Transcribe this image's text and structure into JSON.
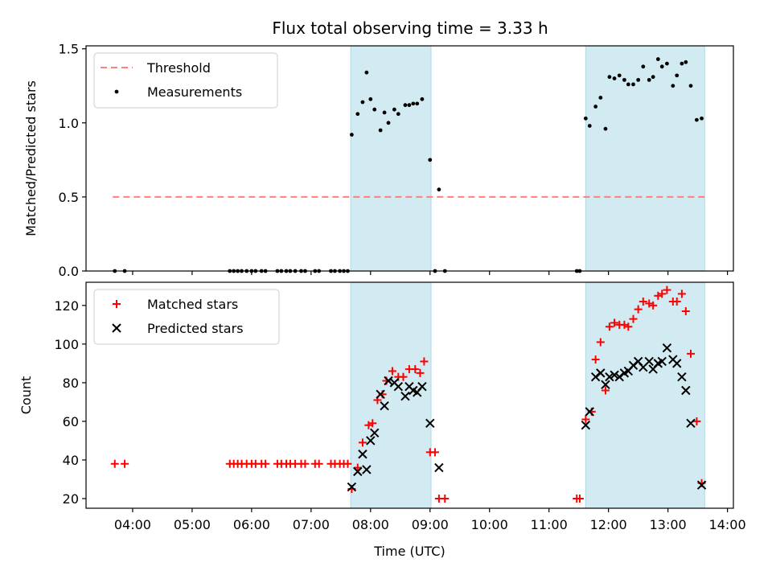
{
  "title": "Flux total observing time = 3.33 h",
  "colors": {
    "threshold": "#ff7f7f",
    "shade": "#add8e6",
    "matched": "#ff0000",
    "predicted": "#000000",
    "measurement": "#000000"
  },
  "chart_data": [
    {
      "type": "scatter",
      "ylabel": "Matched/Predicted stars",
      "xlabel": "",
      "ylim": [
        0,
        1.52
      ],
      "yticks": [
        "0.0",
        "0.5",
        "1.0",
        "1.5"
      ],
      "ytick_values": [
        0,
        0.5,
        1.0,
        1.5
      ],
      "legend": {
        "location": "upper left",
        "entries": [
          "Threshold",
          "Measurements"
        ]
      },
      "shaded_intervals": [
        [
          "07:40",
          "09:01"
        ],
        [
          "11:37",
          "13:37"
        ]
      ],
      "threshold": {
        "name": "Threshold",
        "value": 0.5,
        "x_range": [
          "03:40",
          "13:37"
        ]
      },
      "series": [
        {
          "name": "Measurements",
          "points": [
            [
              "03:42",
              0
            ],
            [
              "03:52",
              0
            ],
            [
              "05:38",
              0
            ],
            [
              "05:42",
              0
            ],
            [
              "05:46",
              0
            ],
            [
              "05:50",
              0
            ],
            [
              "05:55",
              0
            ],
            [
              "06:00",
              0
            ],
            [
              "06:04",
              0
            ],
            [
              "06:10",
              0
            ],
            [
              "06:14",
              0
            ],
            [
              "06:26",
              0
            ],
            [
              "06:30",
              0
            ],
            [
              "06:35",
              0
            ],
            [
              "06:39",
              0
            ],
            [
              "06:44",
              0
            ],
            [
              "06:50",
              0
            ],
            [
              "06:54",
              0
            ],
            [
              "07:04",
              0
            ],
            [
              "07:08",
              0
            ],
            [
              "07:20",
              0
            ],
            [
              "07:24",
              0
            ],
            [
              "07:29",
              0
            ],
            [
              "07:33",
              0
            ],
            [
              "07:37",
              0
            ],
            [
              "07:41",
              0.92
            ],
            [
              "07:47",
              1.06
            ],
            [
              "07:52",
              1.14
            ],
            [
              "07:56",
              1.34
            ],
            [
              "08:00",
              1.16
            ],
            [
              "08:04",
              1.09
            ],
            [
              "08:10",
              0.95
            ],
            [
              "08:14",
              1.07
            ],
            [
              "08:18",
              1.0
            ],
            [
              "08:24",
              1.09
            ],
            [
              "08:28",
              1.06
            ],
            [
              "08:35",
              1.12
            ],
            [
              "08:39",
              1.12
            ],
            [
              "08:43",
              1.13
            ],
            [
              "08:47",
              1.13
            ],
            [
              "08:52",
              1.16
            ],
            [
              "09:00",
              0.75
            ],
            [
              "09:05",
              0.0
            ],
            [
              "09:09",
              0.55
            ],
            [
              "09:15",
              0.0
            ],
            [
              "11:28",
              0
            ],
            [
              "11:31",
              0
            ],
            [
              "11:37",
              1.03
            ],
            [
              "11:41",
              0.98
            ],
            [
              "11:47",
              1.11
            ],
            [
              "11:52",
              1.17
            ],
            [
              "11:57",
              0.96
            ],
            [
              "12:01",
              1.31
            ],
            [
              "12:06",
              1.3
            ],
            [
              "12:11",
              1.32
            ],
            [
              "12:16",
              1.29
            ],
            [
              "12:20",
              1.26
            ],
            [
              "12:25",
              1.26
            ],
            [
              "12:30",
              1.29
            ],
            [
              "12:35",
              1.38
            ],
            [
              "12:41",
              1.29
            ],
            [
              "12:45",
              1.31
            ],
            [
              "12:50",
              1.43
            ],
            [
              "12:54",
              1.38
            ],
            [
              "12:59",
              1.4
            ],
            [
              "13:05",
              1.25
            ],
            [
              "13:09",
              1.32
            ],
            [
              "13:14",
              1.4
            ],
            [
              "13:18",
              1.41
            ],
            [
              "13:23",
              1.25
            ],
            [
              "13:29",
              1.02
            ],
            [
              "13:34",
              1.03
            ]
          ]
        }
      ]
    },
    {
      "type": "scatter",
      "xlabel": "Time (UTC)",
      "ylabel": "Count",
      "ylim": [
        15,
        132
      ],
      "yticks": [
        "20",
        "40",
        "60",
        "80",
        "100",
        "120"
      ],
      "ytick_values": [
        20,
        40,
        60,
        80,
        100,
        120
      ],
      "xlim": [
        "03:13",
        "14:06"
      ],
      "xticks": [
        "04:00",
        "05:00",
        "06:00",
        "07:00",
        "08:00",
        "09:00",
        "10:00",
        "11:00",
        "12:00",
        "13:00",
        "14:00"
      ],
      "legend": {
        "location": "upper left",
        "entries": [
          "Matched stars",
          "Predicted stars"
        ]
      },
      "shaded_intervals": [
        [
          "07:40",
          "09:01"
        ],
        [
          "11:37",
          "13:37"
        ]
      ],
      "series": [
        {
          "name": "Matched stars",
          "marker": "+",
          "points": [
            [
              "03:42",
              38
            ],
            [
              "03:52",
              38
            ],
            [
              "05:38",
              38
            ],
            [
              "05:42",
              38
            ],
            [
              "05:46",
              38
            ],
            [
              "05:50",
              38
            ],
            [
              "05:55",
              38
            ],
            [
              "06:00",
              38
            ],
            [
              "06:04",
              38
            ],
            [
              "06:10",
              38
            ],
            [
              "06:14",
              38
            ],
            [
              "06:26",
              38
            ],
            [
              "06:30",
              38
            ],
            [
              "06:35",
              38
            ],
            [
              "06:39",
              38
            ],
            [
              "06:44",
              38
            ],
            [
              "06:50",
              38
            ],
            [
              "06:54",
              38
            ],
            [
              "07:04",
              38
            ],
            [
              "07:08",
              38
            ],
            [
              "07:20",
              38
            ],
            [
              "07:24",
              38
            ],
            [
              "07:29",
              38
            ],
            [
              "07:33",
              38
            ],
            [
              "07:37",
              38
            ],
            [
              "07:41",
              25
            ],
            [
              "07:47",
              36
            ],
            [
              "07:52",
              49
            ],
            [
              "07:58",
              58
            ],
            [
              "08:02",
              59
            ],
            [
              "08:07",
              71
            ],
            [
              "08:12",
              74
            ],
            [
              "08:16",
              81
            ],
            [
              "08:22",
              86
            ],
            [
              "08:28",
              83
            ],
            [
              "08:33",
              83
            ],
            [
              "08:39",
              87
            ],
            [
              "08:45",
              87
            ],
            [
              "08:50",
              85
            ],
            [
              "08:54",
              91
            ],
            [
              "09:00",
              44
            ],
            [
              "09:05",
              44
            ],
            [
              "09:09",
              20
            ],
            [
              "09:15",
              20
            ],
            [
              "11:28",
              20
            ],
            [
              "11:31",
              20
            ],
            [
              "11:37",
              61
            ],
            [
              "11:43",
              65
            ],
            [
              "11:47",
              92
            ],
            [
              "11:52",
              101
            ],
            [
              "11:57",
              76
            ],
            [
              "12:01",
              109
            ],
            [
              "12:06",
              111
            ],
            [
              "12:11",
              110
            ],
            [
              "12:16",
              110
            ],
            [
              "12:20",
              109
            ],
            [
              "12:25",
              113
            ],
            [
              "12:30",
              118
            ],
            [
              "12:35",
              122
            ],
            [
              "12:41",
              121
            ],
            [
              "12:45",
              120
            ],
            [
              "12:50",
              125
            ],
            [
              "12:54",
              126
            ],
            [
              "12:59",
              128
            ],
            [
              "13:05",
              122
            ],
            [
              "13:09",
              122
            ],
            [
              "13:14",
              126
            ],
            [
              "13:18",
              117
            ],
            [
              "13:23",
              95
            ],
            [
              "13:29",
              60
            ],
            [
              "13:34",
              28
            ]
          ]
        },
        {
          "name": "Predicted stars",
          "marker": "x",
          "points": [
            [
              "07:41",
              26
            ],
            [
              "07:47",
              34
            ],
            [
              "07:52",
              43
            ],
            [
              "07:56",
              35
            ],
            [
              "08:00",
              50
            ],
            [
              "08:04",
              54
            ],
            [
              "08:10",
              74
            ],
            [
              "08:14",
              68
            ],
            [
              "08:18",
              81
            ],
            [
              "08:24",
              80
            ],
            [
              "08:28",
              78
            ],
            [
              "08:35",
              73
            ],
            [
              "08:39",
              78
            ],
            [
              "08:43",
              76
            ],
            [
              "08:47",
              75
            ],
            [
              "08:52",
              78
            ],
            [
              "09:00",
              59
            ],
            [
              "09:09",
              36
            ],
            [
              "11:37",
              58
            ],
            [
              "11:41",
              65
            ],
            [
              "11:47",
              83
            ],
            [
              "11:52",
              85
            ],
            [
              "11:57",
              79
            ],
            [
              "12:01",
              83
            ],
            [
              "12:06",
              84
            ],
            [
              "12:11",
              83
            ],
            [
              "12:16",
              85
            ],
            [
              "12:20",
              86
            ],
            [
              "12:25",
              89
            ],
            [
              "12:30",
              91
            ],
            [
              "12:35",
              88
            ],
            [
              "12:41",
              91
            ],
            [
              "12:45",
              87
            ],
            [
              "12:50",
              90
            ],
            [
              "12:54",
              91
            ],
            [
              "12:59",
              98
            ],
            [
              "13:05",
              92
            ],
            [
              "13:09",
              90
            ],
            [
              "13:14",
              83
            ],
            [
              "13:18",
              76
            ],
            [
              "13:23",
              59
            ],
            [
              "13:34",
              27
            ]
          ]
        }
      ]
    }
  ]
}
